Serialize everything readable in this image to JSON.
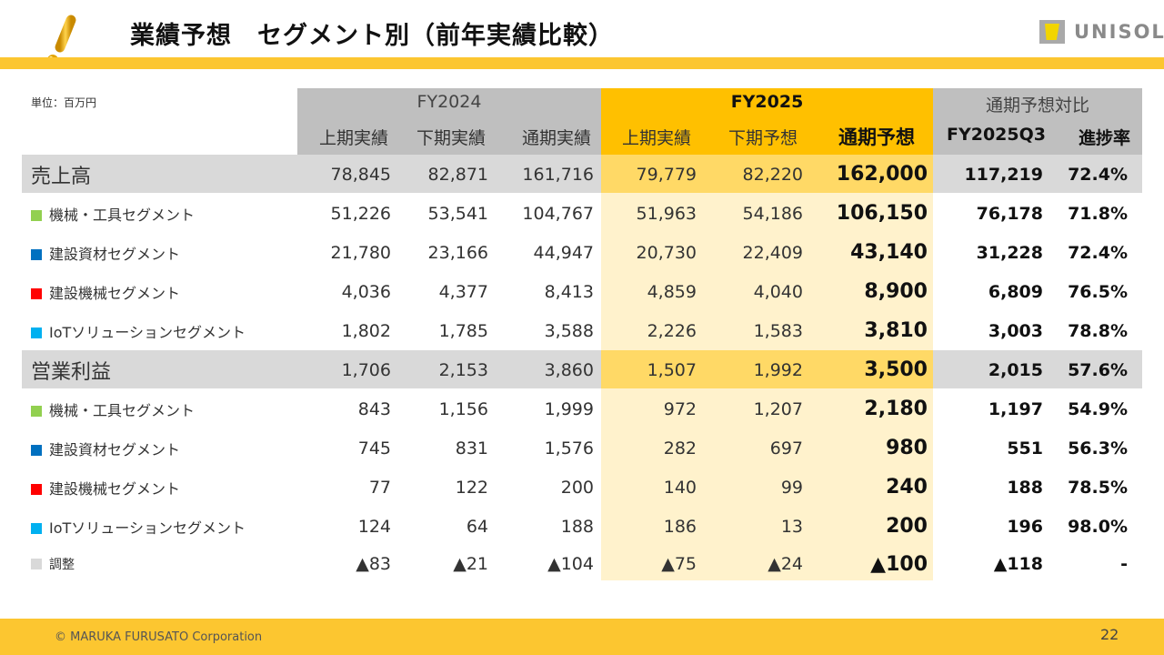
{
  "header": {
    "title": "業績予想　セグメント別（前年実績比較）",
    "logo_text": "UNISOL",
    "accent_color": "#FCC630"
  },
  "table": {
    "unit": "単位：百万円",
    "groups": [
      {
        "label": "FY2024",
        "color": "#BFBFBF"
      },
      {
        "label": "FY2025",
        "color": "#FFC000"
      },
      {
        "label": "通期予想対比",
        "color": "#BFBFBF"
      }
    ],
    "columns": [
      "上期実績",
      "下期実績",
      "通期実績",
      "上期実績",
      "下期予想",
      "通期予想",
      "FY2025Q3",
      "進捗率"
    ],
    "rows": [
      {
        "name": "売上高",
        "type": "main",
        "values": [
          "78,845",
          "82,871",
          "161,716",
          "79,779",
          "82,220",
          "162,000",
          "117,219",
          "72.4%"
        ]
      },
      {
        "name": "機械・工具セグメント",
        "type": "sub",
        "color": "#92D050",
        "values": [
          "51,226",
          "53,541",
          "104,767",
          "51,963",
          "54,186",
          "106,150",
          "76,178",
          "71.8%"
        ]
      },
      {
        "name": "建設資材セグメント",
        "type": "sub",
        "color": "#0070C0",
        "values": [
          "21,780",
          "23,166",
          "44,947",
          "20,730",
          "22,409",
          "43,140",
          "31,228",
          "72.4%"
        ]
      },
      {
        "name": "建設機械セグメント",
        "type": "sub",
        "color": "#FF0000",
        "values": [
          "4,036",
          "4,377",
          "8,413",
          "4,859",
          "4,040",
          "8,900",
          "6,809",
          "76.5%"
        ]
      },
      {
        "name": "IoTソリューションセグメント",
        "type": "sub",
        "color": "#00B0F0",
        "values": [
          "1,802",
          "1,785",
          "3,588",
          "2,226",
          "1,583",
          "3,810",
          "3,003",
          "78.8%"
        ]
      },
      {
        "name": "営業利益",
        "type": "main",
        "values": [
          "1,706",
          "2,153",
          "3,860",
          "1,507",
          "1,992",
          "3,500",
          "2,015",
          "57.6%"
        ]
      },
      {
        "name": "機械・工具セグメント",
        "type": "sub",
        "color": "#92D050",
        "values": [
          "843",
          "1,156",
          "1,999",
          "972",
          "1,207",
          "2,180",
          "1,197",
          "54.9%"
        ]
      },
      {
        "name": "建設資材セグメント",
        "type": "sub",
        "color": "#0070C0",
        "values": [
          "745",
          "831",
          "1,576",
          "282",
          "697",
          "980",
          "551",
          "56.3%"
        ]
      },
      {
        "name": "建設機械セグメント",
        "type": "sub",
        "color": "#FF0000",
        "values": [
          "77",
          "122",
          "200",
          "140",
          "99",
          "240",
          "188",
          "78.5%"
        ]
      },
      {
        "name": "IoTソリューションセグメント",
        "type": "sub",
        "color": "#00B0F0",
        "values": [
          "124",
          "64",
          "188",
          "186",
          "13",
          "200",
          "196",
          "98.0%"
        ]
      },
      {
        "name": "調整",
        "type": "adj",
        "color": "#D9D9D9",
        "values": [
          "▲83",
          "▲21",
          "▲104",
          "▲75",
          "▲24",
          "▲100",
          "▲118",
          "-"
        ]
      }
    ]
  },
  "footer": {
    "copyright": "© MARUKA FURUSATO Corporation",
    "page_number": "22"
  }
}
